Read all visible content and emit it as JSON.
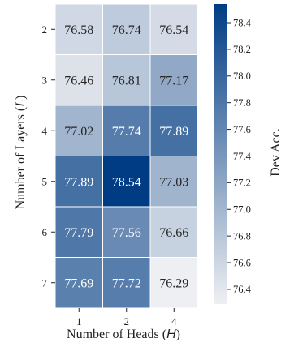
{
  "chart_data": {
    "type": "heatmap",
    "xlabel": "Number of Heads (",
    "xlabel_var": "H",
    "xlabel_tail": ")",
    "ylabel": "Number of Layers (",
    "ylabel_var": "L",
    "ylabel_tail": ")",
    "x_categories": [
      "1",
      "2",
      "4"
    ],
    "y_categories": [
      "2",
      "3",
      "4",
      "5",
      "6",
      "7"
    ],
    "values": [
      [
        76.58,
        76.74,
        76.54
      ],
      [
        76.46,
        76.81,
        77.17
      ],
      [
        77.02,
        77.74,
        77.89
      ],
      [
        77.89,
        78.54,
        77.03
      ],
      [
        77.79,
        77.56,
        76.66
      ],
      [
        77.69,
        77.72,
        76.29
      ]
    ],
    "colorbar": {
      "label": "Dev Acc.",
      "range": [
        76.29,
        78.54
      ],
      "ticks": [
        "76.4",
        "76.6",
        "76.8",
        "77.0",
        "77.2",
        "77.4",
        "77.6",
        "77.8",
        "78.0",
        "78.2",
        "78.4"
      ],
      "color_low": "#eeeff2",
      "color_high": "#003c84"
    }
  }
}
